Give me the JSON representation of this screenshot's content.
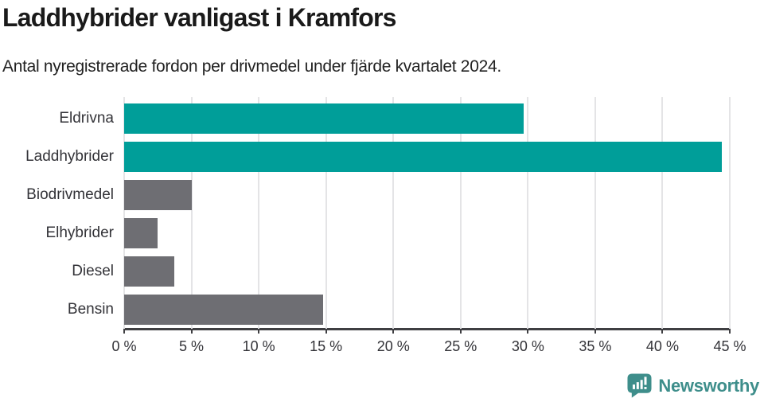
{
  "header": {
    "title": "Laddhybrider vanligast i Kramfors",
    "subtitle": "Antal nyregistrerade fordon per drivmedel under fjärde kvartalet 2024."
  },
  "chart_data": {
    "type": "bar",
    "orientation": "horizontal",
    "title": "Laddhybrider vanligast i Kramfors",
    "subtitle": "Antal nyregistrerade fordon per drivmedel under fjärde kvartalet 2024.",
    "categories": [
      "Eldrivna",
      "Laddhybrider",
      "Biodrivmedel",
      "Elhybrider",
      "Diesel",
      "Bensin"
    ],
    "values": [
      29.7,
      44.4,
      5.0,
      2.5,
      3.7,
      14.8
    ],
    "unit": "%",
    "xlabel": "",
    "ylabel": "",
    "xlim": [
      0,
      45
    ],
    "x_ticks": [
      0,
      5,
      10,
      15,
      20,
      25,
      30,
      35,
      40,
      45
    ],
    "x_tick_suffix": " %",
    "grid": true,
    "legend": false,
    "bar_colors": [
      "#009e99",
      "#009e99",
      "#6e6e73",
      "#6e6e73",
      "#6e6e73",
      "#6e6e73"
    ],
    "highlight_color": "#009e99",
    "default_color": "#6e6e73",
    "gridline_color": "#e4e4e6",
    "axis_color": "#3f3f42"
  },
  "footer": {
    "brand": "Newsworthy",
    "brand_color": "#3e8e8b",
    "logo_icon": "bar-chart-speech-bubble-icon"
  }
}
